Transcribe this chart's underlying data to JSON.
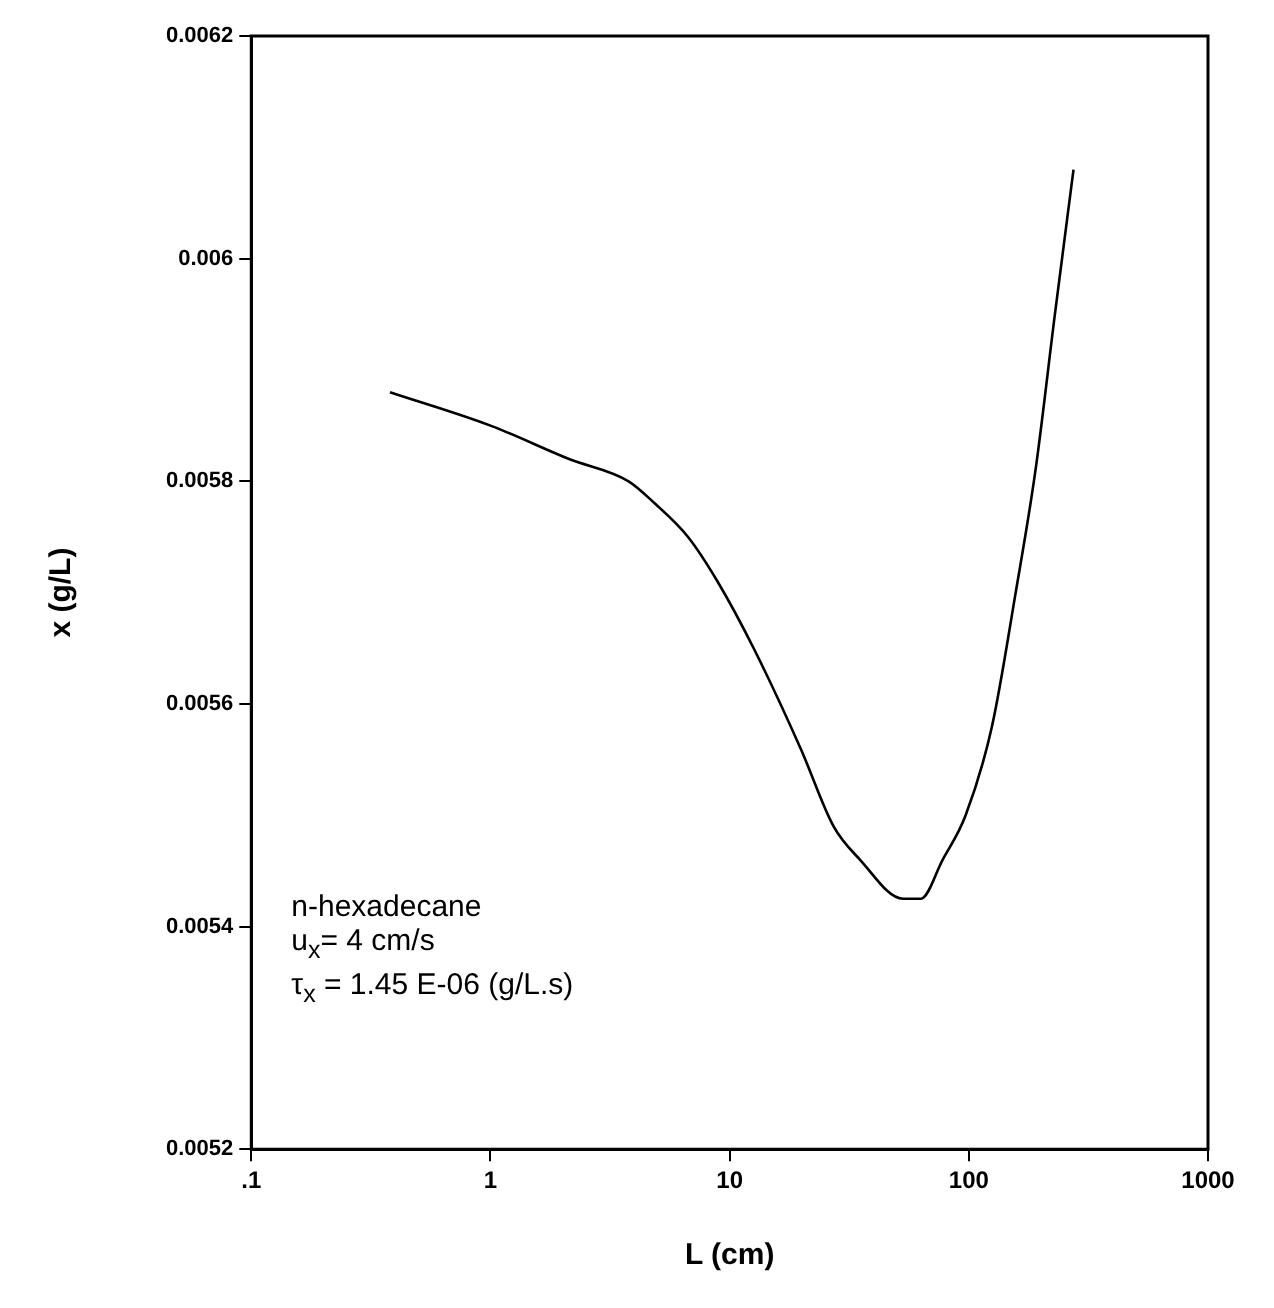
{
  "chart_data": {
    "type": "line",
    "xlabel": "L (cm)",
    "ylabel": "x (g/L)",
    "log": "x",
    "grid": false,
    "legend": false,
    "marker": "none",
    "line_style": "solid",
    "xlim": [
      0.1,
      1000
    ],
    "xticks": [
      {
        "value": 0.1,
        "label": ".1"
      },
      1,
      10,
      100,
      1000
    ],
    "ylim": [
      0.0052,
      0.0062
    ],
    "yticks": [
      0.0052,
      0.0054,
      0.0056,
      0.0058,
      0.006,
      0.0062
    ],
    "series": [
      {
        "color": "#000000",
        "x": [
          0.38,
          1,
          2.13,
          3.78,
          4.87,
          6.7,
          8.9,
          12.6,
          19.8,
          27.2,
          35.1,
          53,
          63,
          77.7,
          97,
          125,
          157,
          190,
          229,
          274
        ],
        "values": [
          0.00588,
          0.00585,
          0.00582,
          0.0058,
          0.00578,
          0.00575,
          0.00571,
          0.00565,
          0.00556,
          0.00549,
          0.00546,
          0.005425,
          0.005425,
          0.00546,
          0.0055,
          0.00558,
          0.0057,
          0.00581,
          0.00595,
          0.00608
        ]
      }
    ],
    "annotations": [
      "n-hexadecane",
      "u$_{x}$= 4 cm/s",
      "τ$_{x}$ = 1.45 E-06 (g/L.s)"
    ]
  }
}
